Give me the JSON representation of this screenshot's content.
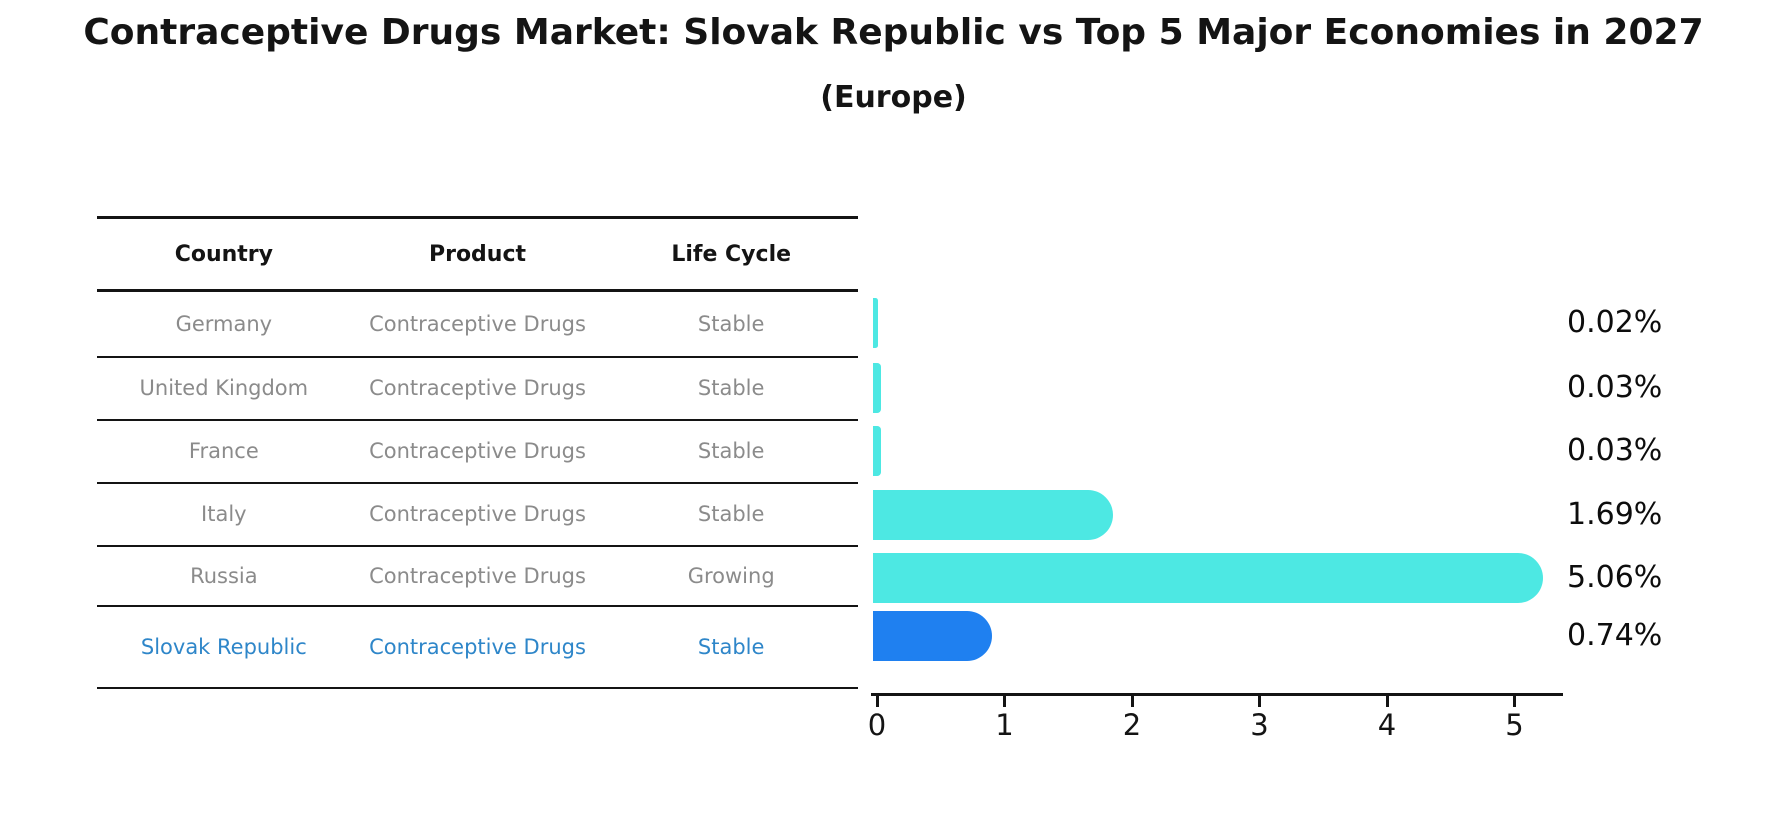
{
  "title": "Contraceptive Drugs Market: Slovak Republic vs Top 5 Major Economies in 2027",
  "subtitle": "(Europe)",
  "table": {
    "headers": [
      "Country",
      "Product",
      "Life Cycle"
    ],
    "rows": [
      {
        "country": "Germany",
        "product": "Contraceptive Drugs",
        "life_cycle": "Stable",
        "highlight": false
      },
      {
        "country": "United Kingdom",
        "product": "Contraceptive Drugs",
        "life_cycle": "Stable",
        "highlight": false
      },
      {
        "country": "France",
        "product": "Contraceptive Drugs",
        "life_cycle": "Stable",
        "highlight": false
      },
      {
        "country": "Italy",
        "product": "Contraceptive Drugs",
        "life_cycle": "Stable",
        "highlight": false
      },
      {
        "country": "Russia",
        "product": "Contraceptive Drugs",
        "life_cycle": "Growing",
        "highlight": false
      },
      {
        "country": "Slovak Republic",
        "product": "Contraceptive Drugs",
        "life_cycle": "Stable",
        "highlight": true
      }
    ]
  },
  "chart_data": {
    "type": "bar",
    "orientation": "horizontal",
    "categories": [
      "Germany",
      "United Kingdom",
      "France",
      "Italy",
      "Russia",
      "Slovak Republic"
    ],
    "values": [
      0.02,
      0.03,
      0.03,
      1.69,
      5.06,
      0.74
    ],
    "value_labels": [
      "0.02%",
      "0.03%",
      "0.03%",
      "1.69%",
      "5.06%",
      "0.74%"
    ],
    "x_ticks": [
      "0",
      "1",
      "2",
      "3",
      "4",
      "5"
    ],
    "xlim": [
      0,
      5.4
    ],
    "grid": false,
    "legend": false,
    "bar_color": "#4de8e3",
    "highlight_color": "#1f80f0",
    "highlight_index": 5,
    "title": "Contraceptive Drugs Market: Slovak Republic vs Top 5 Major Economies in 2027",
    "subtitle": "(Europe)"
  },
  "colors": {
    "bar_cyan": "#4de8e3",
    "bar_blue": "#1f80f0",
    "row_text_gray": "#8b8b8b",
    "highlight_text_blue": "#2e86c9",
    "ink": "#141414"
  }
}
